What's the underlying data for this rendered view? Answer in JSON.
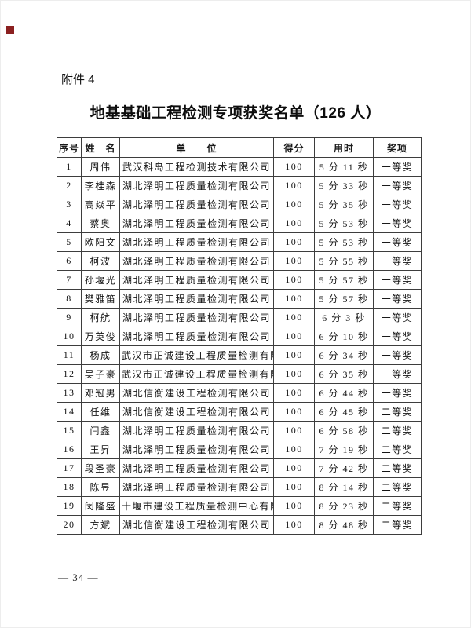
{
  "page": {
    "attachment_label": "附件 4",
    "title": "地基基础工程检测专项获奖名单（126 人）",
    "page_number": "— 34 —",
    "marker_color": "#8b2020"
  },
  "table": {
    "headers": [
      "序号",
      "姓　名",
      "单　　位",
      "得分",
      "用时",
      "奖项"
    ],
    "rows": [
      {
        "no": "1",
        "name": "周伟",
        "unit": "武汉科岛工程检测技术有限公司",
        "score": "100",
        "time": "5 分 11 秒",
        "award": "一等奖"
      },
      {
        "no": "2",
        "name": "李桂森",
        "unit": "湖北泽明工程质量检测有限公司",
        "score": "100",
        "time": "5 分 33 秒",
        "award": "一等奖"
      },
      {
        "no": "3",
        "name": "高焱平",
        "unit": "湖北泽明工程质量检测有限公司",
        "score": "100",
        "time": "5 分 35 秒",
        "award": "一等奖"
      },
      {
        "no": "4",
        "name": "蔡奥",
        "unit": "湖北泽明工程质量检测有限公司",
        "score": "100",
        "time": "5 分 53 秒",
        "award": "一等奖"
      },
      {
        "no": "5",
        "name": "欧阳文",
        "unit": "湖北泽明工程质量检测有限公司",
        "score": "100",
        "time": "5 分 53 秒",
        "award": "一等奖"
      },
      {
        "no": "6",
        "name": "柯波",
        "unit": "湖北泽明工程质量检测有限公司",
        "score": "100",
        "time": "5 分 55 秒",
        "award": "一等奖"
      },
      {
        "no": "7",
        "name": "孙堰光",
        "unit": "湖北泽明工程质量检测有限公司",
        "score": "100",
        "time": "5 分 57 秒",
        "award": "一等奖"
      },
      {
        "no": "8",
        "name": "樊雅笛",
        "unit": "湖北泽明工程质量检测有限公司",
        "score": "100",
        "time": "5 分 57 秒",
        "award": "一等奖"
      },
      {
        "no": "9",
        "name": "柯航",
        "unit": "湖北泽明工程质量检测有限公司",
        "score": "100",
        "time": "6 分 3 秒",
        "award": "一等奖"
      },
      {
        "no": "10",
        "name": "万英俊",
        "unit": "湖北泽明工程质量检测有限公司",
        "score": "100",
        "time": "6 分 10 秒",
        "award": "一等奖"
      },
      {
        "no": "11",
        "name": "杨成",
        "unit": "武汉市正诚建设工程质量检测有限公司",
        "score": "100",
        "time": "6 分 34 秒",
        "award": "一等奖"
      },
      {
        "no": "12",
        "name": "吴子豪",
        "unit": "武汉市正诚建设工程质量检测有限公司",
        "score": "100",
        "time": "6 分 35 秒",
        "award": "一等奖"
      },
      {
        "no": "13",
        "name": "邓冠男",
        "unit": "湖北信衡建设工程检测有限公司",
        "score": "100",
        "time": "6 分 44 秒",
        "award": "一等奖"
      },
      {
        "no": "14",
        "name": "任维",
        "unit": "湖北信衡建设工程检测有限公司",
        "score": "100",
        "time": "6 分 45 秒",
        "award": "二等奖"
      },
      {
        "no": "15",
        "name": "闫鑫",
        "unit": "湖北泽明工程质量检测有限公司",
        "score": "100",
        "time": "6 分 58 秒",
        "award": "二等奖"
      },
      {
        "no": "16",
        "name": "王昇",
        "unit": "湖北泽明工程质量检测有限公司",
        "score": "100",
        "time": "7 分 19 秒",
        "award": "二等奖"
      },
      {
        "no": "17",
        "name": "段圣豪",
        "unit": "湖北泽明工程质量检测有限公司",
        "score": "100",
        "time": "7 分 42 秒",
        "award": "二等奖"
      },
      {
        "no": "18",
        "name": "陈昱",
        "unit": "湖北泽明工程质量检测有限公司",
        "score": "100",
        "time": "8 分 14 秒",
        "award": "二等奖"
      },
      {
        "no": "19",
        "name": "闵隆盛",
        "unit": "十堰市建设工程质量检测中心有限公司",
        "score": "100",
        "time": "8 分 23 秒",
        "award": "二等奖"
      },
      {
        "no": "20",
        "name": "方斌",
        "unit": "湖北信衡建设工程检测有限公司",
        "score": "100",
        "time": "8 分 48 秒",
        "award": "二等奖"
      }
    ]
  }
}
